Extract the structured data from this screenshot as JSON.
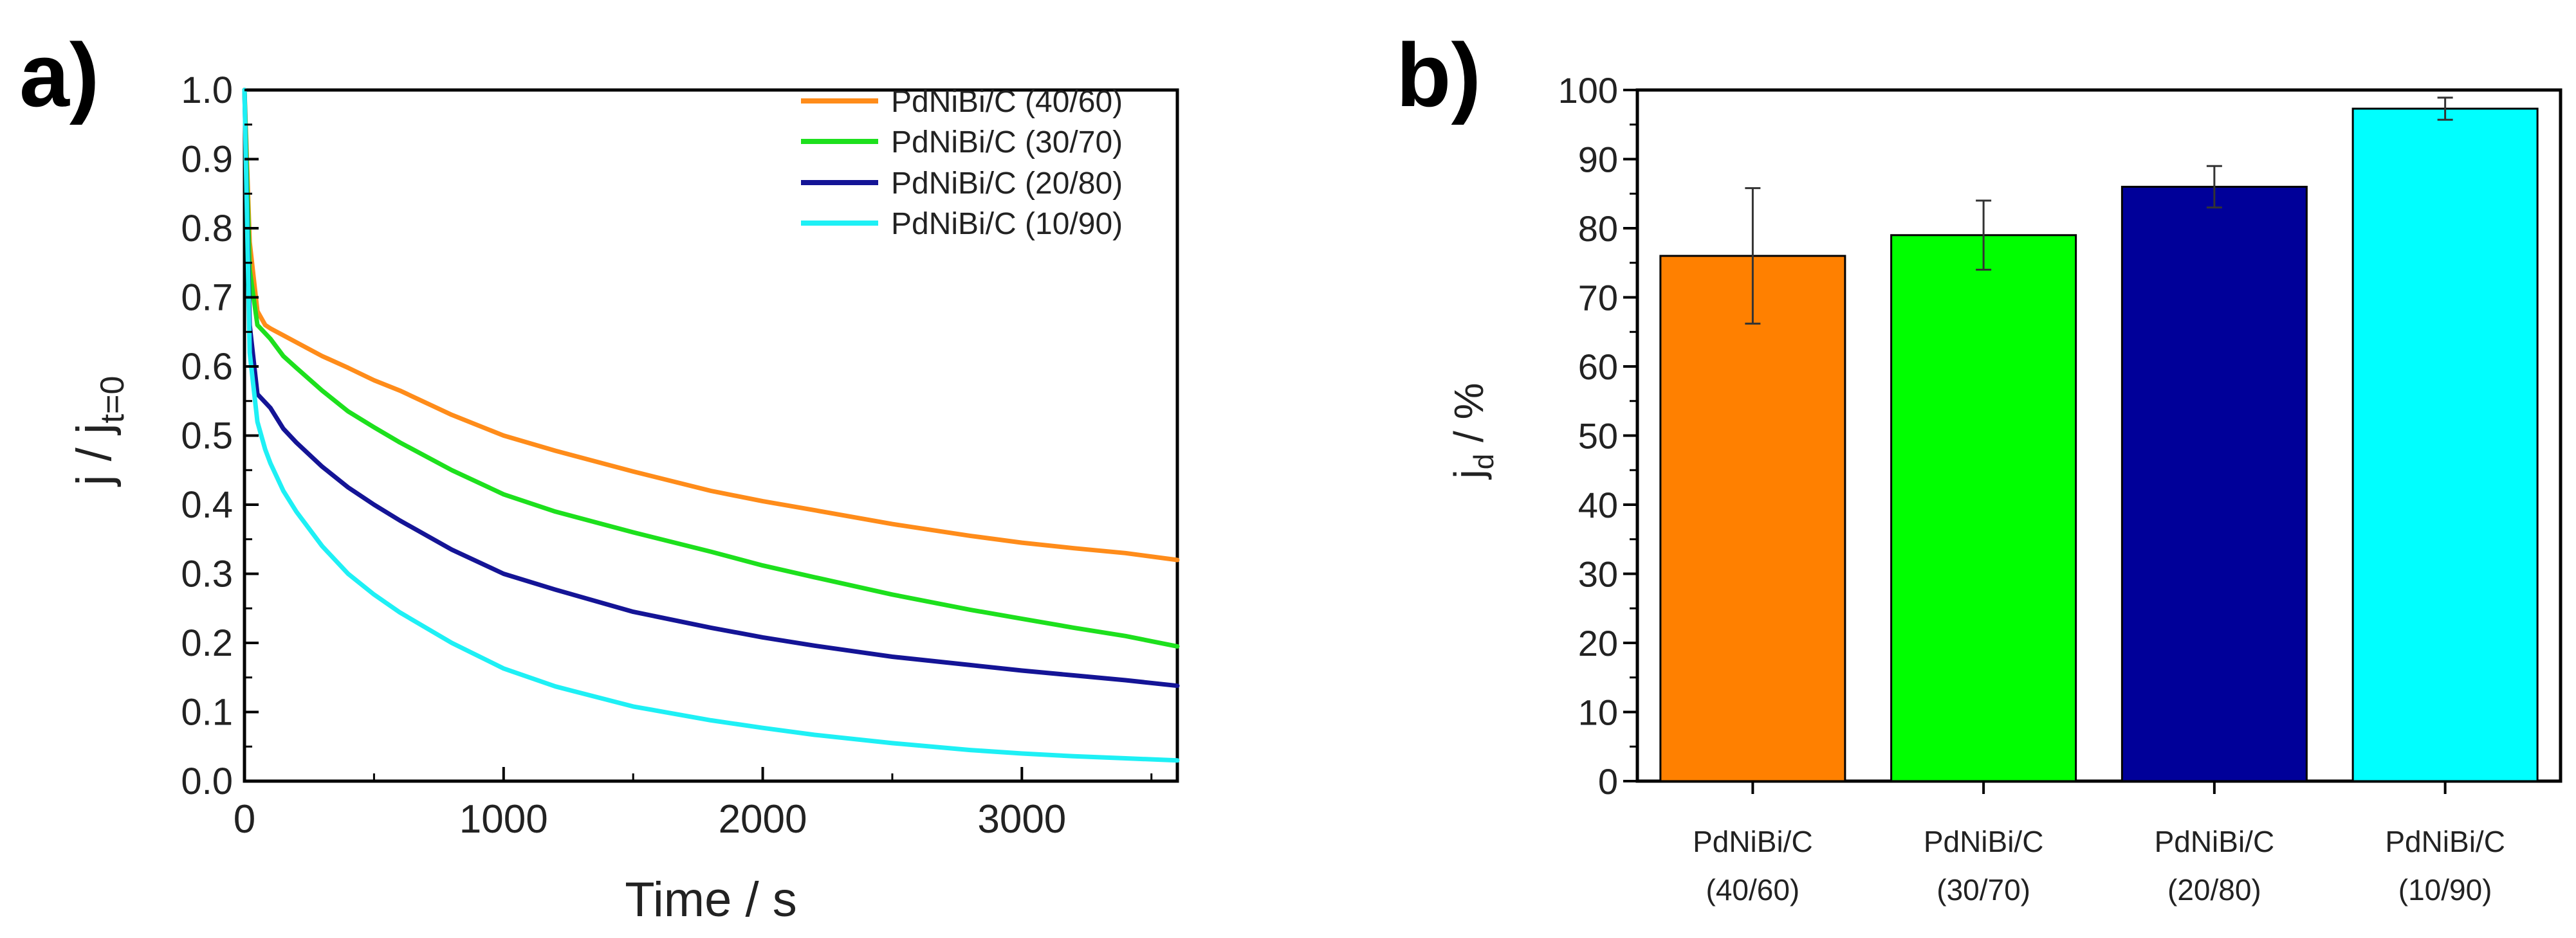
{
  "chart_data": [
    {
      "panel": "a)",
      "type": "line",
      "xlabel": "Time / s",
      "ylabel_main": "j / j",
      "ylabel_sub": "t=0",
      "xlim": [
        0,
        3600
      ],
      "ylim": [
        0,
        1.0
      ],
      "xticks": [
        0,
        1000,
        2000,
        3000
      ],
      "xtick_labels": [
        "0",
        "1000",
        "2000",
        "3000"
      ],
      "yticks": [
        0,
        0.1,
        0.2,
        0.3,
        0.4,
        0.5,
        0.6,
        0.7,
        0.8,
        0.9,
        1.0
      ],
      "ytick_labels": [
        "0.0",
        "0.1",
        "0.2",
        "0.3",
        "0.4",
        "0.5",
        "0.6",
        "0.7",
        "0.8",
        "0.9",
        "1.0"
      ],
      "legend_position": "top-right",
      "series": [
        {
          "name": "PdNiBi/C (40/60)",
          "color": "#ff8c1a",
          "x": [
            0,
            20,
            50,
            80,
            100,
            150,
            200,
            300,
            400,
            500,
            600,
            800,
            1000,
            1200,
            1500,
            1800,
            2000,
            2200,
            2500,
            2800,
            3000,
            3200,
            3400,
            3600
          ],
          "y": [
            1.0,
            0.78,
            0.68,
            0.66,
            0.655,
            0.645,
            0.635,
            0.615,
            0.598,
            0.58,
            0.565,
            0.53,
            0.5,
            0.478,
            0.448,
            0.42,
            0.405,
            0.392,
            0.372,
            0.355,
            0.345,
            0.337,
            0.33,
            0.32
          ]
        },
        {
          "name": "PdNiBi/C (30/70)",
          "color": "#1de01d",
          "x": [
            0,
            20,
            50,
            80,
            100,
            150,
            200,
            300,
            400,
            500,
            600,
            800,
            1000,
            1200,
            1500,
            1800,
            2000,
            2200,
            2500,
            2800,
            3000,
            3200,
            3400,
            3600
          ],
          "y": [
            1.0,
            0.74,
            0.66,
            0.648,
            0.64,
            0.615,
            0.598,
            0.565,
            0.535,
            0.512,
            0.49,
            0.45,
            0.415,
            0.39,
            0.36,
            0.332,
            0.312,
            0.295,
            0.27,
            0.248,
            0.235,
            0.222,
            0.21,
            0.195
          ]
        },
        {
          "name": "PdNiBi/C (20/80)",
          "color": "#141496",
          "x": [
            0,
            20,
            50,
            80,
            100,
            150,
            200,
            300,
            400,
            500,
            600,
            800,
            1000,
            1200,
            1500,
            1800,
            2000,
            2200,
            2500,
            2800,
            3000,
            3200,
            3400,
            3600
          ],
          "y": [
            1.0,
            0.66,
            0.56,
            0.548,
            0.54,
            0.51,
            0.49,
            0.455,
            0.425,
            0.4,
            0.377,
            0.335,
            0.3,
            0.277,
            0.245,
            0.222,
            0.208,
            0.196,
            0.18,
            0.168,
            0.16,
            0.153,
            0.146,
            0.138
          ]
        },
        {
          "name": "PdNiBi/C (10/90)",
          "color": "#1ef0f5",
          "x": [
            0,
            20,
            50,
            80,
            100,
            150,
            200,
            300,
            400,
            500,
            600,
            800,
            1000,
            1200,
            1500,
            1800,
            2000,
            2200,
            2500,
            2800,
            3000,
            3200,
            3400,
            3600
          ],
          "y": [
            1.0,
            0.62,
            0.52,
            0.48,
            0.46,
            0.42,
            0.39,
            0.34,
            0.3,
            0.27,
            0.244,
            0.2,
            0.163,
            0.137,
            0.108,
            0.088,
            0.077,
            0.067,
            0.055,
            0.045,
            0.04,
            0.036,
            0.033,
            0.03
          ]
        }
      ]
    },
    {
      "panel": "b)",
      "type": "bar",
      "ylabel_main": "j",
      "ylabel_sub": "d",
      "ylabel_suffix": " / %",
      "ylim": [
        0,
        100
      ],
      "yticks": [
        0,
        10,
        20,
        30,
        40,
        50,
        60,
        70,
        80,
        90,
        100
      ],
      "ytick_labels": [
        "0",
        "10",
        "20",
        "30",
        "40",
        "50",
        "60",
        "70",
        "80",
        "90",
        "100"
      ],
      "categories": [
        {
          "line1": "PdNiBi/C",
          "line2": "(40/60)"
        },
        {
          "line1": "PdNiBi/C",
          "line2": "(30/70)"
        },
        {
          "line1": "PdNiBi/C",
          "line2": "(20/80)"
        },
        {
          "line1": "PdNiBi/C",
          "line2": "(10/90)"
        }
      ],
      "values": [
        76,
        79,
        86,
        97.3
      ],
      "errors": [
        9.8,
        5,
        3,
        1.6
      ],
      "colors": [
        "#ff8000",
        "#00ff00",
        "#000099",
        "#00ffff"
      ]
    }
  ]
}
